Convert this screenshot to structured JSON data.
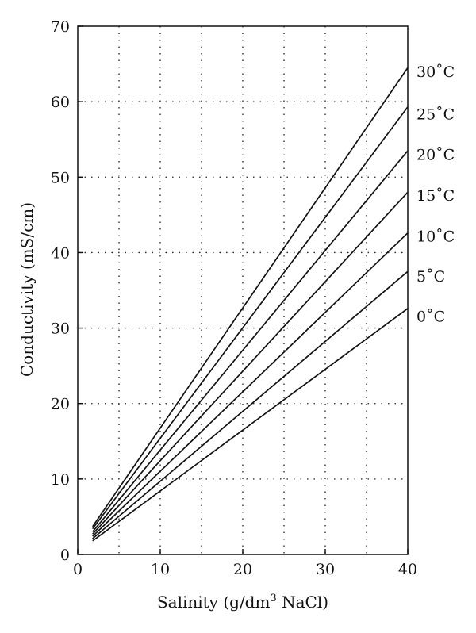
{
  "chart_data": {
    "type": "line",
    "title": "",
    "xlabel_main": "Salinity (g/dm",
    "xlabel_sup": "3",
    "xlabel_tail": " NaCl)",
    "ylabel": "Conductivity (mS/cm)",
    "xlim": [
      0,
      40
    ],
    "ylim": [
      0,
      70
    ],
    "xticks": [
      0,
      10,
      20,
      30,
      40
    ],
    "xtick_labels": [
      "0",
      "10",
      "20",
      "30",
      "40"
    ],
    "yticks": [
      0,
      10,
      20,
      30,
      40,
      50,
      60,
      70
    ],
    "ytick_labels": [
      "0",
      "10",
      "20",
      "30",
      "40",
      "50",
      "60",
      "70"
    ],
    "grid_x": [
      5,
      10,
      15,
      20,
      25,
      30,
      35
    ],
    "grid_y": [
      10,
      20,
      30,
      40,
      50,
      60
    ],
    "grid": true,
    "series": [
      {
        "name": "0˚C",
        "x": [
          1.8,
          40
        ],
        "y": [
          1.8,
          32.6
        ]
      },
      {
        "name": "5˚C",
        "x": [
          1.8,
          40
        ],
        "y": [
          2.1,
          37.5
        ]
      },
      {
        "name": "10˚C",
        "x": [
          1.8,
          40
        ],
        "y": [
          2.4,
          42.6
        ]
      },
      {
        "name": "15˚C",
        "x": [
          1.8,
          40
        ],
        "y": [
          2.7,
          48.0
        ]
      },
      {
        "name": "20˚C",
        "x": [
          1.8,
          40
        ],
        "y": [
          3.0,
          53.5
        ]
      },
      {
        "name": "25˚C",
        "x": [
          1.8,
          40
        ],
        "y": [
          3.4,
          59.3
        ]
      },
      {
        "name": "30˚C",
        "x": [
          1.8,
          40
        ],
        "y": [
          3.7,
          64.5
        ]
      }
    ],
    "series_label_y": [
      31.6,
      36.9,
      42.2,
      47.6,
      53.0,
      58.4,
      64.0
    ]
  }
}
